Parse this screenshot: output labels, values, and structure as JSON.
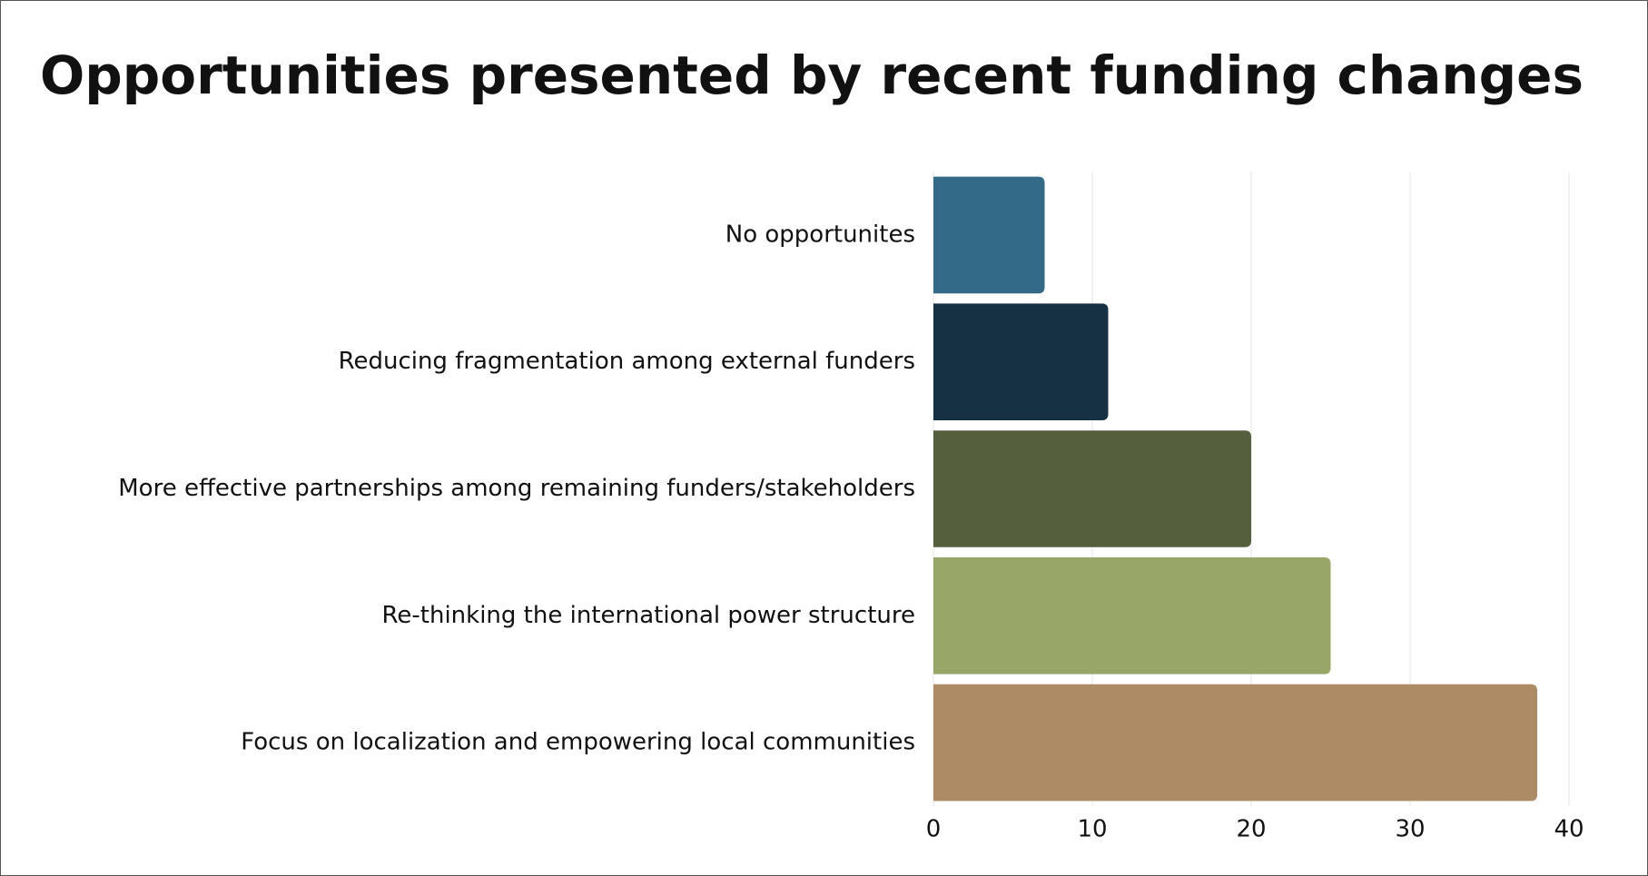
{
  "chart_data": {
    "type": "bar",
    "orientation": "horizontal",
    "title": "Opportunities presented by recent funding changes",
    "categories": [
      "No opportunites",
      "Reducing fragmentation among external funders",
      "More effective partnerships among remaining funders/stakeholders",
      "Re-thinking the international power structure",
      "Focus on localization and empowering local communities"
    ],
    "values": [
      7,
      11,
      20,
      25,
      38
    ],
    "colors": [
      "#336a87",
      "#173144",
      "#555f3d",
      "#98a768",
      "#ad8b65"
    ],
    "xlim": [
      0,
      40
    ],
    "xticks": [
      0,
      10,
      20,
      30,
      40
    ],
    "grid": true
  }
}
